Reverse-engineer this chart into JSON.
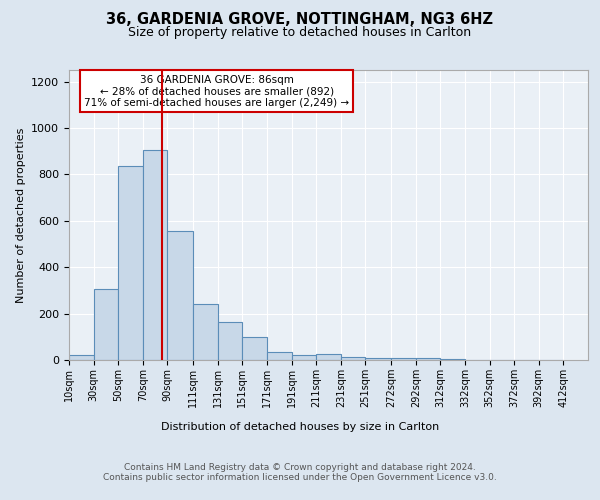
{
  "title": "36, GARDENIA GROVE, NOTTINGHAM, NG3 6HZ",
  "subtitle": "Size of property relative to detached houses in Carlton",
  "xlabel": "Distribution of detached houses by size in Carlton",
  "ylabel": "Number of detached properties",
  "bar_left_edges": [
    10,
    30,
    50,
    70,
    90,
    111,
    131,
    151,
    171,
    191,
    211,
    231,
    251,
    272,
    292,
    312,
    332,
    352,
    372,
    392
  ],
  "bar_widths": [
    20,
    20,
    20,
    20,
    21,
    20,
    20,
    20,
    20,
    20,
    20,
    20,
    21,
    20,
    20,
    20,
    20,
    20,
    20,
    20
  ],
  "bar_heights": [
    20,
    305,
    835,
    905,
    555,
    240,
    165,
    100,
    35,
    20,
    25,
    15,
    10,
    10,
    10,
    5,
    0,
    0,
    0,
    0
  ],
  "tick_labels": [
    "10sqm",
    "30sqm",
    "50sqm",
    "70sqm",
    "90sqm",
    "111sqm",
    "131sqm",
    "151sqm",
    "171sqm",
    "191sqm",
    "211sqm",
    "231sqm",
    "251sqm",
    "272sqm",
    "292sqm",
    "312sqm",
    "332sqm",
    "352sqm",
    "372sqm",
    "392sqm",
    "412sqm"
  ],
  "tick_positions": [
    10,
    30,
    50,
    70,
    90,
    111,
    131,
    151,
    171,
    191,
    211,
    231,
    251,
    272,
    292,
    312,
    332,
    352,
    372,
    392,
    412
  ],
  "bar_color": "#c8d8e8",
  "bar_edge_color": "#5b8db8",
  "vline_x": 86,
  "vline_color": "#cc0000",
  "annotation_text": "36 GARDENIA GROVE: 86sqm\n← 28% of detached houses are smaller (892)\n71% of semi-detached houses are larger (2,249) →",
  "annotation_box_color": "#ffffff",
  "annotation_box_edge": "#cc0000",
  "ylim": [
    0,
    1250
  ],
  "yticks": [
    0,
    200,
    400,
    600,
    800,
    1000,
    1200
  ],
  "footer_text": "Contains HM Land Registry data © Crown copyright and database right 2024.\nContains public sector information licensed under the Open Government Licence v3.0.",
  "bg_color": "#dce6f0",
  "plot_bg_color": "#eaf0f6"
}
